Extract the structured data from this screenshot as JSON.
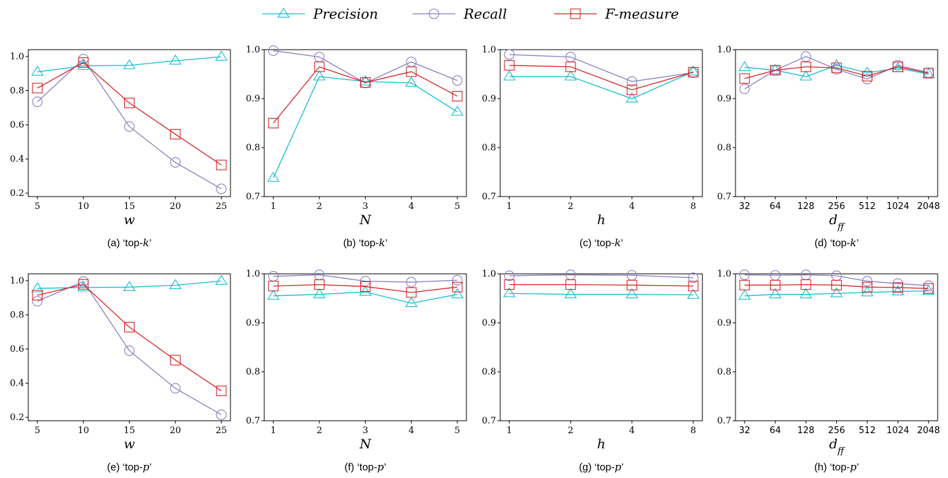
{
  "legend": [
    {
      "name": "Precision",
      "color": "#17becf",
      "marker": "triangle"
    },
    {
      "name": "Recall",
      "color": "#8c7fc0",
      "marker": "circle"
    },
    {
      "name": "F-measure",
      "color": "#d62728",
      "marker": "square"
    }
  ],
  "chart_data": [
    {
      "type": "line",
      "caption": "(a) ‘top-k’",
      "xlabel": "w",
      "categories": [
        "5",
        "10",
        "15",
        "20",
        "25"
      ],
      "ylim": [
        0.18,
        1.04
      ],
      "yticks": [
        "0.2",
        "0.4",
        "0.6",
        "0.8",
        "1.0"
      ],
      "series": [
        {
          "name": "Precision",
          "values": [
            0.91,
            0.945,
            0.948,
            0.975,
            0.998
          ]
        },
        {
          "name": "Recall",
          "values": [
            0.735,
            0.985,
            0.59,
            0.38,
            0.225
          ]
        },
        {
          "name": "F-measure",
          "values": [
            0.815,
            0.965,
            0.728,
            0.545,
            0.365
          ]
        }
      ]
    },
    {
      "type": "line",
      "caption": "(b) ‘top-k’",
      "xlabel": "N",
      "categories": [
        "1",
        "2",
        "3",
        "4",
        "5"
      ],
      "ylim": [
        0.7,
        1.0
      ],
      "yticks": [
        "0.7",
        "0.8",
        "0.9",
        "1.0"
      ],
      "series": [
        {
          "name": "Precision",
          "values": [
            0.738,
            0.945,
            0.935,
            0.932,
            0.873
          ]
        },
        {
          "name": "Recall",
          "values": [
            0.998,
            0.985,
            0.932,
            0.975,
            0.937
          ]
        },
        {
          "name": "F-measure",
          "values": [
            0.85,
            0.965,
            0.933,
            0.955,
            0.905
          ]
        }
      ]
    },
    {
      "type": "line",
      "caption": "(c) ‘top-k’",
      "xlabel": "h",
      "categories": [
        "1",
        "2",
        "4",
        "8"
      ],
      "ylim": [
        0.7,
        1.0
      ],
      "yticks": [
        "0.7",
        "0.8",
        "0.9",
        "1.0"
      ],
      "series": [
        {
          "name": "Precision",
          "values": [
            0.945,
            0.945,
            0.9,
            0.955
          ]
        },
        {
          "name": "Recall",
          "values": [
            0.99,
            0.985,
            0.935,
            0.953
          ]
        },
        {
          "name": "F-measure",
          "values": [
            0.968,
            0.965,
            0.918,
            0.954
          ]
        }
      ]
    },
    {
      "type": "line",
      "caption": "(d) ‘top-k’",
      "xlabel": "dff",
      "categories": [
        "32",
        "64",
        "128",
        "256",
        "512",
        "1024",
        "2048"
      ],
      "ylim": [
        0.7,
        1.0
      ],
      "yticks": [
        "0.7",
        "0.8",
        "0.9",
        "1.0"
      ],
      "series": [
        {
          "name": "Precision",
          "values": [
            0.964,
            0.958,
            0.945,
            0.968,
            0.953,
            0.962,
            0.95
          ]
        },
        {
          "name": "Recall",
          "values": [
            0.92,
            0.958,
            0.986,
            0.96,
            0.94,
            0.968,
            0.953
          ]
        },
        {
          "name": "F-measure",
          "values": [
            0.941,
            0.958,
            0.965,
            0.963,
            0.946,
            0.965,
            0.952
          ]
        }
      ]
    },
    {
      "type": "line",
      "caption": "(e) ‘top-p’",
      "xlabel": "w",
      "categories": [
        "5",
        "10",
        "15",
        "20",
        "25"
      ],
      "ylim": [
        0.18,
        1.04
      ],
      "yticks": [
        "0.2",
        "0.4",
        "0.6",
        "0.8",
        "1.0"
      ],
      "series": [
        {
          "name": "Precision",
          "values": [
            0.955,
            0.96,
            0.962,
            0.973,
            0.998
          ]
        },
        {
          "name": "Recall",
          "values": [
            0.88,
            0.995,
            0.59,
            0.37,
            0.215
          ]
        },
        {
          "name": "F-measure",
          "values": [
            0.915,
            0.978,
            0.728,
            0.535,
            0.355
          ]
        }
      ]
    },
    {
      "type": "line",
      "caption": "(f) ‘top-p’",
      "xlabel": "N",
      "categories": [
        "1",
        "2",
        "3",
        "4",
        "5"
      ],
      "ylim": [
        0.7,
        1.0
      ],
      "yticks": [
        "0.7",
        "0.8",
        "0.9",
        "1.0"
      ],
      "series": [
        {
          "name": "Precision",
          "values": [
            0.955,
            0.958,
            0.963,
            0.94,
            0.958
          ]
        },
        {
          "name": "Recall",
          "values": [
            0.995,
            0.998,
            0.985,
            0.983,
            0.987
          ]
        },
        {
          "name": "F-measure",
          "values": [
            0.975,
            0.978,
            0.974,
            0.962,
            0.973
          ]
        }
      ]
    },
    {
      "type": "line",
      "caption": "(g) ‘top-p’",
      "xlabel": "h",
      "categories": [
        "1",
        "2",
        "4",
        "8"
      ],
      "ylim": [
        0.7,
        1.0
      ],
      "yticks": [
        "0.7",
        "0.8",
        "0.9",
        "1.0"
      ],
      "series": [
        {
          "name": "Precision",
          "values": [
            0.96,
            0.958,
            0.958,
            0.957
          ]
        },
        {
          "name": "Recall",
          "values": [
            0.996,
            0.998,
            0.997,
            0.992
          ]
        },
        {
          "name": "F-measure",
          "values": [
            0.978,
            0.978,
            0.977,
            0.975
          ]
        }
      ]
    },
    {
      "type": "line",
      "caption": "(h) ‘top-p’",
      "xlabel": "dff",
      "categories": [
        "32",
        "64",
        "128",
        "256",
        "512",
        "1024",
        "2048"
      ],
      "ylim": [
        0.7,
        1.0
      ],
      "yticks": [
        "0.7",
        "0.8",
        "0.9",
        "1.0"
      ],
      "series": [
        {
          "name": "Precision",
          "values": [
            0.955,
            0.958,
            0.958,
            0.96,
            0.962,
            0.964,
            0.965
          ]
        },
        {
          "name": "Recall",
          "values": [
            0.998,
            0.997,
            0.998,
            0.996,
            0.985,
            0.98,
            0.976
          ]
        },
        {
          "name": "F-measure",
          "values": [
            0.977,
            0.977,
            0.978,
            0.977,
            0.973,
            0.972,
            0.97
          ]
        }
      ]
    }
  ]
}
